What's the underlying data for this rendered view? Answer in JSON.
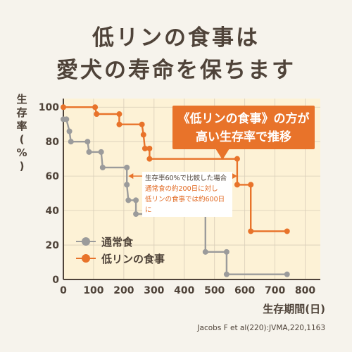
{
  "headline": {
    "line1": "低リンの食事は",
    "line2": "愛犬の寿命を保ちます"
  },
  "callout": {
    "line1": "《低リンの食事》の方が",
    "line2": "高い生存率で推移"
  },
  "note": {
    "line1": "生存率60%で比較した場合",
    "line2": "通常食の約200日に対し",
    "line3": "低リンの食事では約600日に"
  },
  "source": "Jacobs F et al(220):JVMA,220,1163",
  "colors": {
    "gray": "#9b9b9b",
    "orange": "#e8732a",
    "plot_bg": "#fdf2d6",
    "grid": "#d8cdb8"
  },
  "chart_data": {
    "type": "line",
    "step": true,
    "ylabel_chars": [
      "生",
      "存",
      "率",
      "(",
      "%",
      ")"
    ],
    "xlabel": "生存期間(日)",
    "xlim": [
      0,
      850
    ],
    "ylim": [
      0,
      105
    ],
    "xticks": [
      0,
      100,
      200,
      300,
      400,
      500,
      600,
      700,
      800
    ],
    "yticks": [
      0,
      20,
      40,
      60,
      80,
      100
    ],
    "grid": true,
    "legend_position": "bottom-left",
    "series": [
      {
        "name": "通常食",
        "color": "#9b9b9b",
        "points": [
          [
            0,
            93
          ],
          [
            10,
            93
          ],
          [
            20,
            86
          ],
          [
            25,
            80
          ],
          [
            80,
            80
          ],
          [
            85,
            74
          ],
          [
            125,
            74
          ],
          [
            130,
            65
          ],
          [
            210,
            65
          ],
          [
            210,
            55
          ],
          [
            215,
            46
          ],
          [
            240,
            46
          ],
          [
            240,
            38
          ],
          [
            470,
            38
          ],
          [
            470,
            16
          ],
          [
            540,
            16
          ],
          [
            540,
            3
          ],
          [
            740,
            3
          ]
        ]
      },
      {
        "name": "低リンの食事",
        "color": "#e8732a",
        "points": [
          [
            0,
            100
          ],
          [
            105,
            100
          ],
          [
            110,
            96
          ],
          [
            185,
            96
          ],
          [
            185,
            90
          ],
          [
            260,
            90
          ],
          [
            265,
            84
          ],
          [
            270,
            76
          ],
          [
            285,
            76
          ],
          [
            285,
            70
          ],
          [
            575,
            70
          ],
          [
            575,
            55
          ],
          [
            620,
            55
          ],
          [
            620,
            28
          ],
          [
            740,
            28
          ]
        ]
      }
    ]
  }
}
